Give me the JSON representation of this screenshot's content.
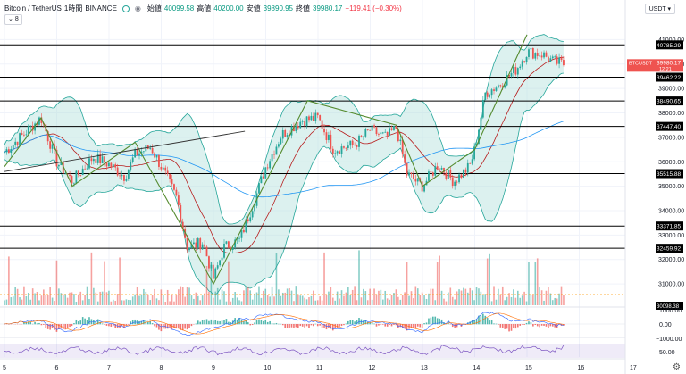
{
  "header": {
    "symbol": "Bitcoin / TetherUS",
    "interval": "1時間",
    "exchange": "BINANCE",
    "o_label": "始値",
    "o_val": "40099.58",
    "h_label": "高値",
    "h_val": "40200.00",
    "l_label": "安値",
    "l_val": "39890.95",
    "c_label": "終値",
    "c_val": "39980.17",
    "change": "−119.41 (−0.30%)",
    "indicator_count": "8"
  },
  "currency": "USDT",
  "colors": {
    "up": "#26a69a",
    "down": "#ef5350",
    "grid": "#f0f3fa",
    "level": "#000000",
    "bb_fill": "#b2dfdb"
  },
  "chart_data": {
    "type": "candlestick",
    "title": "Bitcoin / TetherUS, 1時間, BINANCE",
    "x_ticks": [
      "5",
      "6",
      "7",
      "8",
      "9",
      "10",
      "11",
      "12",
      "13",
      "14",
      "15",
      "16",
      "17"
    ],
    "y_ticks": [
      41000,
      40000,
      39000,
      38000,
      37000,
      36000,
      35000,
      34000,
      33000,
      32000,
      31000
    ],
    "ylim": [
      30200,
      41600
    ],
    "horizontal_levels": [
      40785.29,
      39462.22,
      38490.65,
      37447.4,
      35515.88,
      33371.85,
      32459.92
    ],
    "last_price": {
      "label": "BTCUSDT",
      "value": "39980.17",
      "countdown": "12:21"
    },
    "volume_marker": "30098.38",
    "price_path": [
      {
        "day": 5.0,
        "price": 36400
      },
      {
        "day": 5.4,
        "price": 37200
      },
      {
        "day": 5.7,
        "price": 37800
      },
      {
        "day": 6.0,
        "price": 36000
      },
      {
        "day": 6.3,
        "price": 35200
      },
      {
        "day": 6.7,
        "price": 36200
      },
      {
        "day": 7.0,
        "price": 35900
      },
      {
        "day": 7.3,
        "price": 35400
      },
      {
        "day": 7.5,
        "price": 36300
      },
      {
        "day": 7.8,
        "price": 36600
      },
      {
        "day": 8.0,
        "price": 35800
      },
      {
        "day": 8.3,
        "price": 34500
      },
      {
        "day": 8.5,
        "price": 32500
      },
      {
        "day": 8.8,
        "price": 32700
      },
      {
        "day": 9.0,
        "price": 31200
      },
      {
        "day": 9.2,
        "price": 32500
      },
      {
        "day": 9.5,
        "price": 32800
      },
      {
        "day": 9.8,
        "price": 34500
      },
      {
        "day": 10.0,
        "price": 35800
      },
      {
        "day": 10.3,
        "price": 37100
      },
      {
        "day": 10.7,
        "price": 37700
      },
      {
        "day": 11.0,
        "price": 37800
      },
      {
        "day": 11.3,
        "price": 36500
      },
      {
        "day": 11.7,
        "price": 36700
      },
      {
        "day": 12.0,
        "price": 37300
      },
      {
        "day": 12.3,
        "price": 37000
      },
      {
        "day": 12.5,
        "price": 37400
      },
      {
        "day": 12.7,
        "price": 35500
      },
      {
        "day": 13.0,
        "price": 35000
      },
      {
        "day": 13.3,
        "price": 35900
      },
      {
        "day": 13.6,
        "price": 35200
      },
      {
        "day": 13.9,
        "price": 35800
      },
      {
        "day": 14.0,
        "price": 36500
      },
      {
        "day": 14.2,
        "price": 38800
      },
      {
        "day": 14.5,
        "price": 39200
      },
      {
        "day": 14.8,
        "price": 39800
      },
      {
        "day": 15.0,
        "price": 40500
      },
      {
        "day": 15.3,
        "price": 40400
      },
      {
        "day": 15.5,
        "price": 40100
      },
      {
        "day": 15.7,
        "price": 40000
      }
    ],
    "zigzag": [
      {
        "day": 5.0,
        "price": 35800
      },
      {
        "day": 5.7,
        "price": 37800
      },
      {
        "day": 6.3,
        "price": 35000
      },
      {
        "day": 7.5,
        "price": 36800
      },
      {
        "day": 9.0,
        "price": 31000
      },
      {
        "day": 10.8,
        "price": 38500
      },
      {
        "day": 12.5,
        "price": 37500
      },
      {
        "day": 13.0,
        "price": 35000
      },
      {
        "day": 14.0,
        "price": 36500
      },
      {
        "day": 15.0,
        "price": 41200
      }
    ],
    "trendline": [
      {
        "day": 5.0,
        "price": 35600
      },
      {
        "day": 9.6,
        "price": 37250
      }
    ],
    "macd_ticks": [
      "1000.00",
      "0.00",
      "−1000.00"
    ],
    "rsi_ticks": [
      "50.00"
    ]
  }
}
